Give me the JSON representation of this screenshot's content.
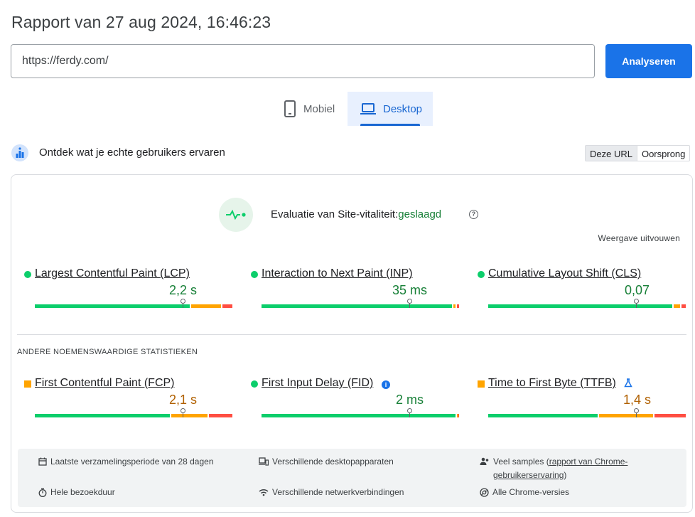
{
  "header": {
    "title": "Rapport van 27 aug 2024, 16:46:23"
  },
  "search": {
    "value": "https://ferdy.com/",
    "button_label": "Analyseren"
  },
  "tabs": [
    {
      "label": "Mobiel",
      "icon": "phone-icon",
      "selected": false
    },
    {
      "label": "Desktop",
      "icon": "laptop-icon",
      "selected": true
    }
  ],
  "crux": {
    "title": "Ontdek wat je echte gebruikers ervaren",
    "toggle": {
      "this_url": "Deze URL",
      "origin": "Oorsprong",
      "selected": "Deze URL"
    }
  },
  "assessment": {
    "label": "Evaluatie van Site-vitaliteit:",
    "status": "geslaagd",
    "expand_label": "Weergave uitvouwen"
  },
  "core_metrics": [
    {
      "name": "Largest Contentful Paint (LCP)",
      "value": "2,2 s",
      "rating": "good",
      "distribution": {
        "good": 0.79,
        "needs_improvement": 0.16,
        "poor": 0.05
      },
      "marker": 0.75
    },
    {
      "name": "Interaction to Next Paint (INP)",
      "value": "35 ms",
      "rating": "good",
      "distribution": {
        "good": 0.97,
        "needs_improvement": 0.02,
        "poor": 0.01
      },
      "marker": 0.75
    },
    {
      "name": "Cumulative Layout Shift (CLS)",
      "value": "0,07",
      "rating": "good",
      "distribution": {
        "good": 0.94,
        "needs_improvement": 0.04,
        "poor": 0.02
      },
      "marker": 0.75
    }
  ],
  "other_section_heading": "ANDERE NOEMENSWAARDIGE STATISTIEKEN",
  "other_metrics": [
    {
      "name": "First Contentful Paint (FCP)",
      "value": "2,1 s",
      "rating": "average",
      "distribution": {
        "good": 0.69,
        "needs_improvement": 0.19,
        "poor": 0.12
      },
      "marker": 0.75
    },
    {
      "name": "First Input Delay (FID)",
      "value": "2 ms",
      "rating": "good",
      "distribution": {
        "good": 0.99,
        "needs_improvement": 0.005,
        "poor": 0.005
      },
      "marker": 0.75,
      "badge": "info-icon"
    },
    {
      "name": "Time to First Byte (TTFB)",
      "value": "1,4 s",
      "rating": "average",
      "distribution": {
        "good": 0.56,
        "needs_improvement": 0.28,
        "poor": 0.16
      },
      "marker": 0.75,
      "badge": "lab-flask-icon"
    }
  ],
  "footer": {
    "collection_period": "Laatste verzamelingsperiode van 28 dagen",
    "devices": "Verschillende desktopapparaten",
    "samples_prefix": "Veel samples (",
    "samples_link": "rapport van Chrome-gebruikerservaring",
    "samples_suffix": ")",
    "duration": "Hele bezoekduur",
    "network": "Verschillende netwerkverbindingen",
    "chrome_versions": "Alle Chrome-versies"
  },
  "colors": {
    "accent": "#1a73e8",
    "good": "#0cce6b",
    "needs_improvement": "#ffa400",
    "poor": "#ff4e42",
    "good_text": "#188038",
    "average_text": "#b06000"
  }
}
